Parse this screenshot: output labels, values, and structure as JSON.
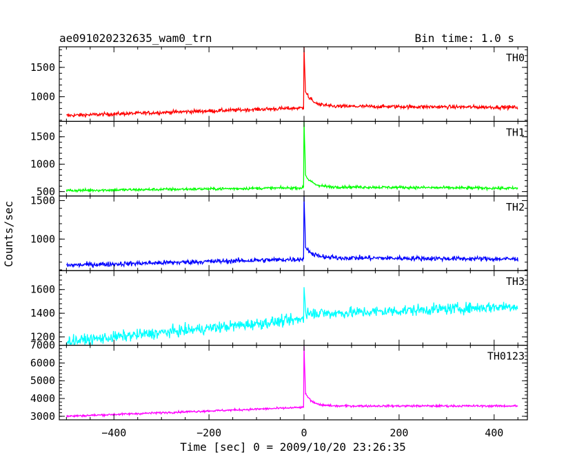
{
  "header": {
    "title": "ae091020232635_wam0_trn",
    "bin_time": "Bin time: 1.0 s"
  },
  "chart_data": {
    "type": "line",
    "xlabel": "Time [sec] 0 = 2009/10/20 23:26:35",
    "ylabel": "Counts/sec",
    "xlim": [
      -515,
      470
    ],
    "x_ticks": [
      -400,
      -200,
      0,
      200,
      400
    ],
    "x_range": [
      -500,
      450
    ],
    "grid": false,
    "panels": [
      {
        "name": "TH0",
        "color": "#ff0000",
        "ylim": [
          580,
          1850
        ],
        "y_ticks": [
          1000,
          1500
        ],
        "start_level": 680,
        "pre_level": 810,
        "peak": 1850,
        "tail_peak": 1100,
        "post_level": 840,
        "end_level": 820,
        "noise": 30
      },
      {
        "name": "TH1",
        "color": "#00ff00",
        "ylim": [
          420,
          1780
        ],
        "y_ticks": [
          500,
          1000,
          1500
        ],
        "start_level": 520,
        "pre_level": 570,
        "peak": 1780,
        "tail_peak": 800,
        "post_level": 590,
        "end_level": 560,
        "noise": 25
      },
      {
        "name": "TH2",
        "color": "#0000ff",
        "ylim": [
          590,
          1560
        ],
        "y_ticks": [
          1000,
          1500
        ],
        "start_level": 660,
        "pre_level": 740,
        "peak": 1560,
        "tail_peak": 900,
        "post_level": 760,
        "end_level": 740,
        "noise": 30
      },
      {
        "name": "TH3",
        "color": "#00ffff",
        "ylim": [
          1130,
          1760
        ],
        "y_ticks": [
          1200,
          1400,
          1600
        ],
        "start_level": 1160,
        "pre_level": 1350,
        "peak": 1620,
        "tail_peak": 1420,
        "post_level": 1390,
        "end_level": 1460,
        "noise": 45
      },
      {
        "name": "TH0123",
        "color": "#ff00ff",
        "ylim": [
          2800,
          7000
        ],
        "y_ticks": [
          3000,
          4000,
          5000,
          6000,
          7000
        ],
        "start_level": 3000,
        "pre_level": 3500,
        "peak": 6950,
        "tail_peak": 4300,
        "post_level": 3580,
        "end_level": 3580,
        "noise": 55
      }
    ]
  }
}
